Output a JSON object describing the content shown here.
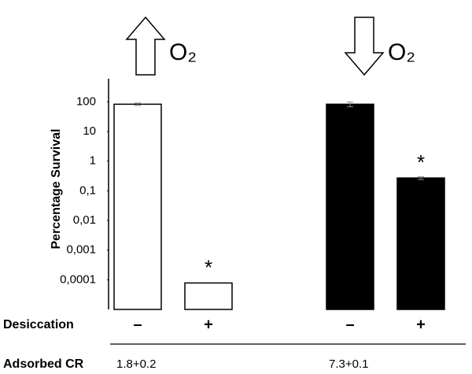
{
  "chart_data": {
    "type": "bar",
    "y_label": "Percentage Survival",
    "log_scale": true,
    "categories": [
      "–",
      "+",
      "–",
      "+"
    ],
    "category_title": "Desiccation",
    "values": [
      83,
      7.8e-05,
      83,
      0.27
    ],
    "errors": [
      8,
      null,
      15,
      0.03
    ],
    "colors": [
      "#ffffff",
      "#ffffff",
      "#000000",
      "#000000"
    ],
    "star_labels": [
      null,
      "*",
      null,
      "*"
    ],
    "ylim": [
      1e-05,
      600
    ],
    "yticks": [
      {
        "value": 0.0001,
        "label": "0,0001"
      },
      {
        "value": 0.001,
        "label": "0,001"
      },
      {
        "value": 0.01,
        "label": "0,01"
      },
      {
        "value": 0.1,
        "label": "0,1"
      },
      1,
      10,
      100
    ],
    "group_labels": [
      "O₂",
      "O₂"
    ],
    "group_arrows": [
      "up",
      "down"
    ],
    "row_title": "Adsorbed CR",
    "row_values": [
      "1.8+0.2",
      "7.3+0.1"
    ]
  }
}
